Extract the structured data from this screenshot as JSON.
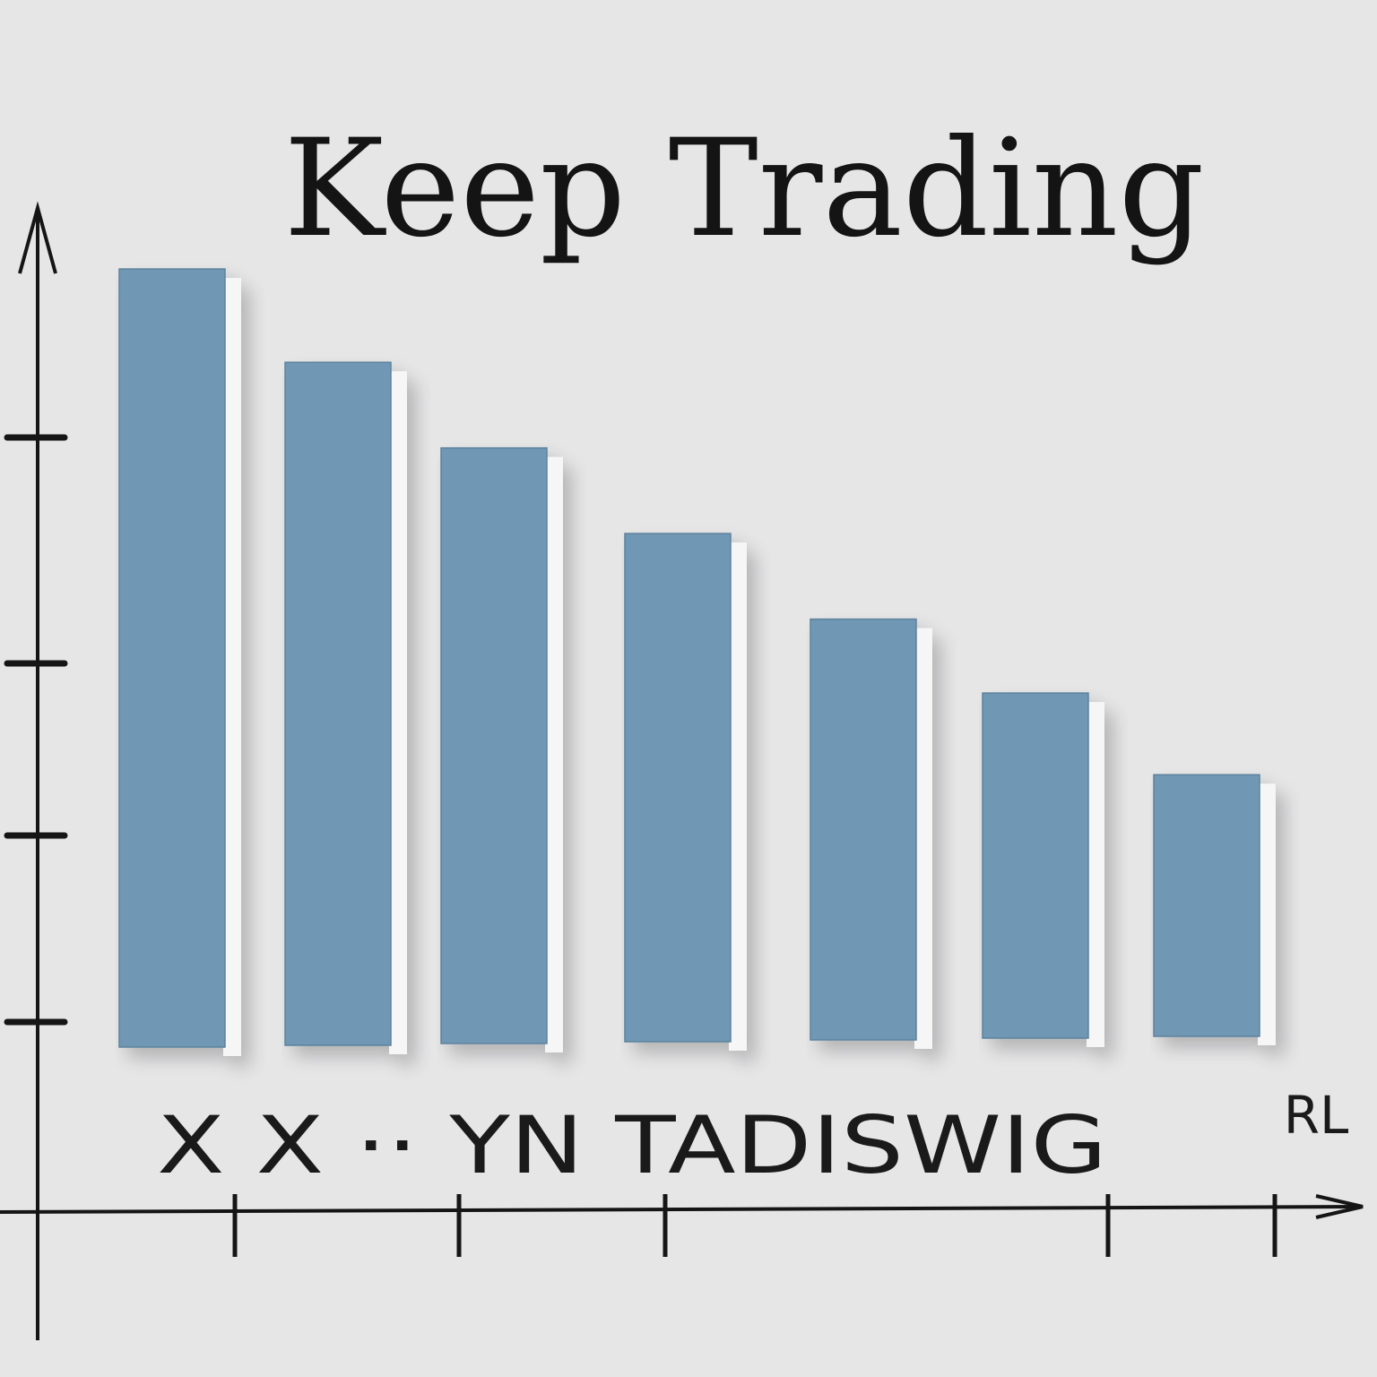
{
  "chart_data": {
    "type": "bar",
    "title": "Keep Trading",
    "xlabel": "X  X ·· YN  TADISWIG",
    "corner_mark": "RL",
    "ylabel": "",
    "categories": [
      "",
      "",
      "",
      "",
      "",
      "",
      ""
    ],
    "values": [
      100,
      88,
      77,
      66,
      55,
      45.5,
      35
    ],
    "ylim": [
      0,
      100
    ],
    "y_ticks": 4,
    "x_ticks": 5,
    "grid": false,
    "colors": {
      "background": "#e6e6e7",
      "bar": "#6f97b4",
      "bar_edge": "#f6f6f6",
      "ink": "#151515"
    }
  }
}
